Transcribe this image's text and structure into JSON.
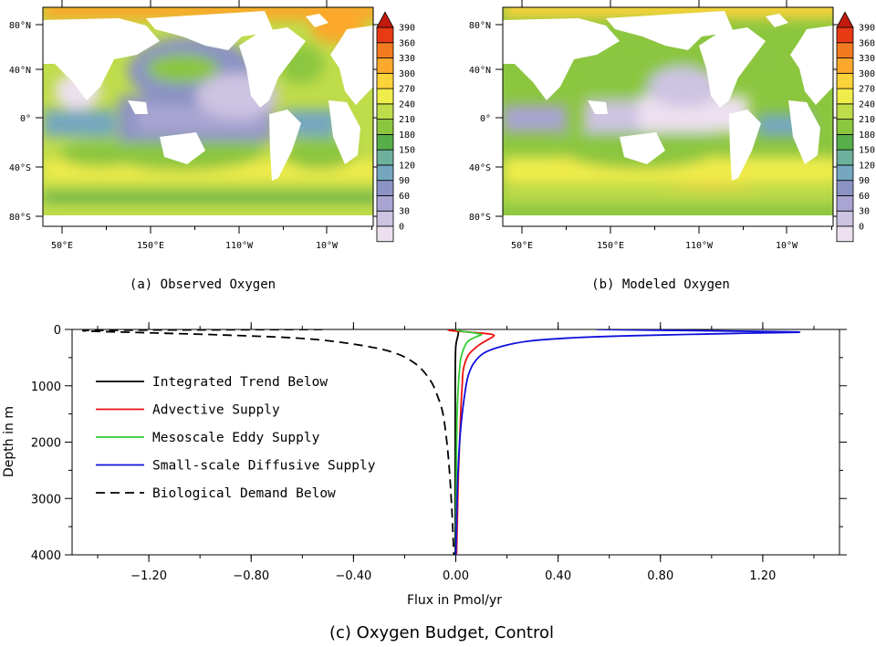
{
  "chart_data": [
    {
      "type": "heatmap",
      "title": "(a) Observed Oxygen",
      "x_ticks": [
        "50°E",
        "150°E",
        "110°W",
        "10°W"
      ],
      "y_ticks": [
        "80°N",
        "40°N",
        "0°",
        "40°S",
        "80°S"
      ],
      "colorbar": {
        "levels": [
          0,
          30,
          60,
          90,
          120,
          150,
          180,
          210,
          240,
          270,
          300,
          330,
          360,
          390
        ],
        "labels": [
          "390",
          "360",
          "330",
          "300",
          "270",
          "240",
          "210",
          "180",
          "150",
          "120",
          "90",
          "60",
          "30",
          "0"
        ],
        "colors": [
          "#ece0ef",
          "#cdc3e2",
          "#a9a4d1",
          "#8b93c4",
          "#74a7bf",
          "#6db09c",
          "#58ae4a",
          "#8cc63f",
          "#bfdc4a",
          "#f0ec4c",
          "#fdd33a",
          "#fba82c",
          "#f47a1f",
          "#e83a14",
          "#c11b0d"
        ],
        "extend": "both"
      }
    },
    {
      "type": "heatmap",
      "title": "(b) Modeled Oxygen",
      "x_ticks": [
        "50°E",
        "150°E",
        "110°W",
        "10°W"
      ],
      "y_ticks": [
        "80°N",
        "40°N",
        "0°",
        "40°S",
        "80°S"
      ],
      "colorbar": {
        "levels": [
          0,
          30,
          60,
          90,
          120,
          150,
          180,
          210,
          240,
          270,
          300,
          330,
          360,
          390
        ],
        "labels": [
          "390",
          "360",
          "330",
          "300",
          "270",
          "240",
          "210",
          "180",
          "150",
          "120",
          "90",
          "60",
          "30",
          "0"
        ],
        "colors": [
          "#ece0ef",
          "#cdc3e2",
          "#a9a4d1",
          "#8b93c4",
          "#74a7bf",
          "#6db09c",
          "#58ae4a",
          "#8cc63f",
          "#bfdc4a",
          "#f0ec4c",
          "#fdd33a",
          "#fba82c",
          "#f47a1f",
          "#e83a14",
          "#c11b0d"
        ],
        "extend": "both"
      }
    },
    {
      "type": "line",
      "title": "(c) Oxygen Budget, Control",
      "xlabel": "Flux in Pmol/yr",
      "ylabel": "Depth in m",
      "xlim": [
        -1.5,
        1.5
      ],
      "ylim": [
        4000,
        0
      ],
      "x_ticks": [
        -1.2,
        -0.8,
        -0.4,
        0.0,
        0.4,
        0.8,
        1.2
      ],
      "x_tick_labels": [
        "−1.20",
        "−0.80",
        "−0.40",
        "0.00",
        "0.40",
        "0.80",
        "1.20"
      ],
      "y_ticks": [
        0,
        1000,
        2000,
        3000,
        4000
      ],
      "y_tick_labels": [
        "0",
        "1000",
        "2000",
        "3000",
        "4000"
      ],
      "legend_position": "left",
      "series": [
        {
          "name": "Integrated Trend Below",
          "color": "#000000",
          "dash": "solid",
          "points": [
            [
              0.0,
              0
            ],
            [
              0.005,
              20
            ],
            [
              0.01,
              60
            ],
            [
              0.008,
              120
            ],
            [
              0.0,
              300
            ],
            [
              -0.002,
              800
            ],
            [
              -0.002,
              2000
            ],
            [
              -0.002,
              3000
            ],
            [
              -0.002,
              4000
            ]
          ]
        },
        {
          "name": "Advective Supply",
          "color": "#ee1111",
          "dash": "solid",
          "points": [
            [
              -0.03,
              0
            ],
            [
              -0.02,
              20
            ],
            [
              0.06,
              50
            ],
            [
              0.13,
              80
            ],
            [
              0.15,
              110
            ],
            [
              0.13,
              170
            ],
            [
              0.09,
              280
            ],
            [
              0.05,
              450
            ],
            [
              0.03,
              700
            ],
            [
              0.025,
              1000
            ],
            [
              0.02,
              1400
            ],
            [
              0.015,
              2000
            ],
            [
              0.01,
              2600
            ],
            [
              0.008,
              3000
            ],
            [
              0.005,
              3600
            ],
            [
              0.003,
              4000
            ]
          ]
        },
        {
          "name": "Mesoscale Eddy Supply",
          "color": "#33cc33",
          "dash": "solid",
          "points": [
            [
              0.0,
              0
            ],
            [
              0.02,
              30
            ],
            [
              0.07,
              60
            ],
            [
              0.1,
              90
            ],
            [
              0.08,
              130
            ],
            [
              0.05,
              200
            ],
            [
              0.035,
              300
            ],
            [
              0.02,
              500
            ],
            [
              0.015,
              700
            ],
            [
              0.01,
              1000
            ],
            [
              0.005,
              1500
            ],
            [
              0.002,
              2500
            ],
            [
              0.0,
              4000
            ]
          ]
        },
        {
          "name": "Small-scale Diffusive Supply",
          "color": "#1111dd",
          "dash": "solid",
          "points": [
            [
              0.55,
              0
            ],
            [
              0.9,
              20
            ],
            [
              1.34,
              45
            ],
            [
              1.1,
              70
            ],
            [
              0.7,
              110
            ],
            [
              0.45,
              150
            ],
            [
              0.28,
              210
            ],
            [
              0.18,
              300
            ],
            [
              0.11,
              420
            ],
            [
              0.07,
              600
            ],
            [
              0.05,
              800
            ],
            [
              0.04,
              1000
            ],
            [
              0.025,
              1500
            ],
            [
              0.015,
              2000
            ],
            [
              0.008,
              2600
            ],
            [
              0.005,
              3000
            ],
            [
              0.002,
              3600
            ],
            [
              0.0,
              4000
            ]
          ]
        },
        {
          "name": "Biological Demand Below",
          "color": "#000000",
          "dash": "dashed",
          "points": [
            [
              -0.52,
              0
            ],
            [
              -0.9,
              6
            ],
            [
              -1.45,
              20
            ],
            [
              -1.2,
              60
            ],
            [
              -0.9,
              100
            ],
            [
              -0.6,
              160
            ],
            [
              -0.4,
              260
            ],
            [
              -0.25,
              400
            ],
            [
              -0.16,
              600
            ],
            [
              -0.1,
              900
            ],
            [
              -0.07,
              1200
            ],
            [
              -0.05,
              1500
            ],
            [
              -0.035,
              2000
            ],
            [
              -0.025,
              2500
            ],
            [
              -0.018,
              3000
            ],
            [
              -0.012,
              3500
            ],
            [
              -0.008,
              4000
            ]
          ]
        }
      ]
    }
  ]
}
